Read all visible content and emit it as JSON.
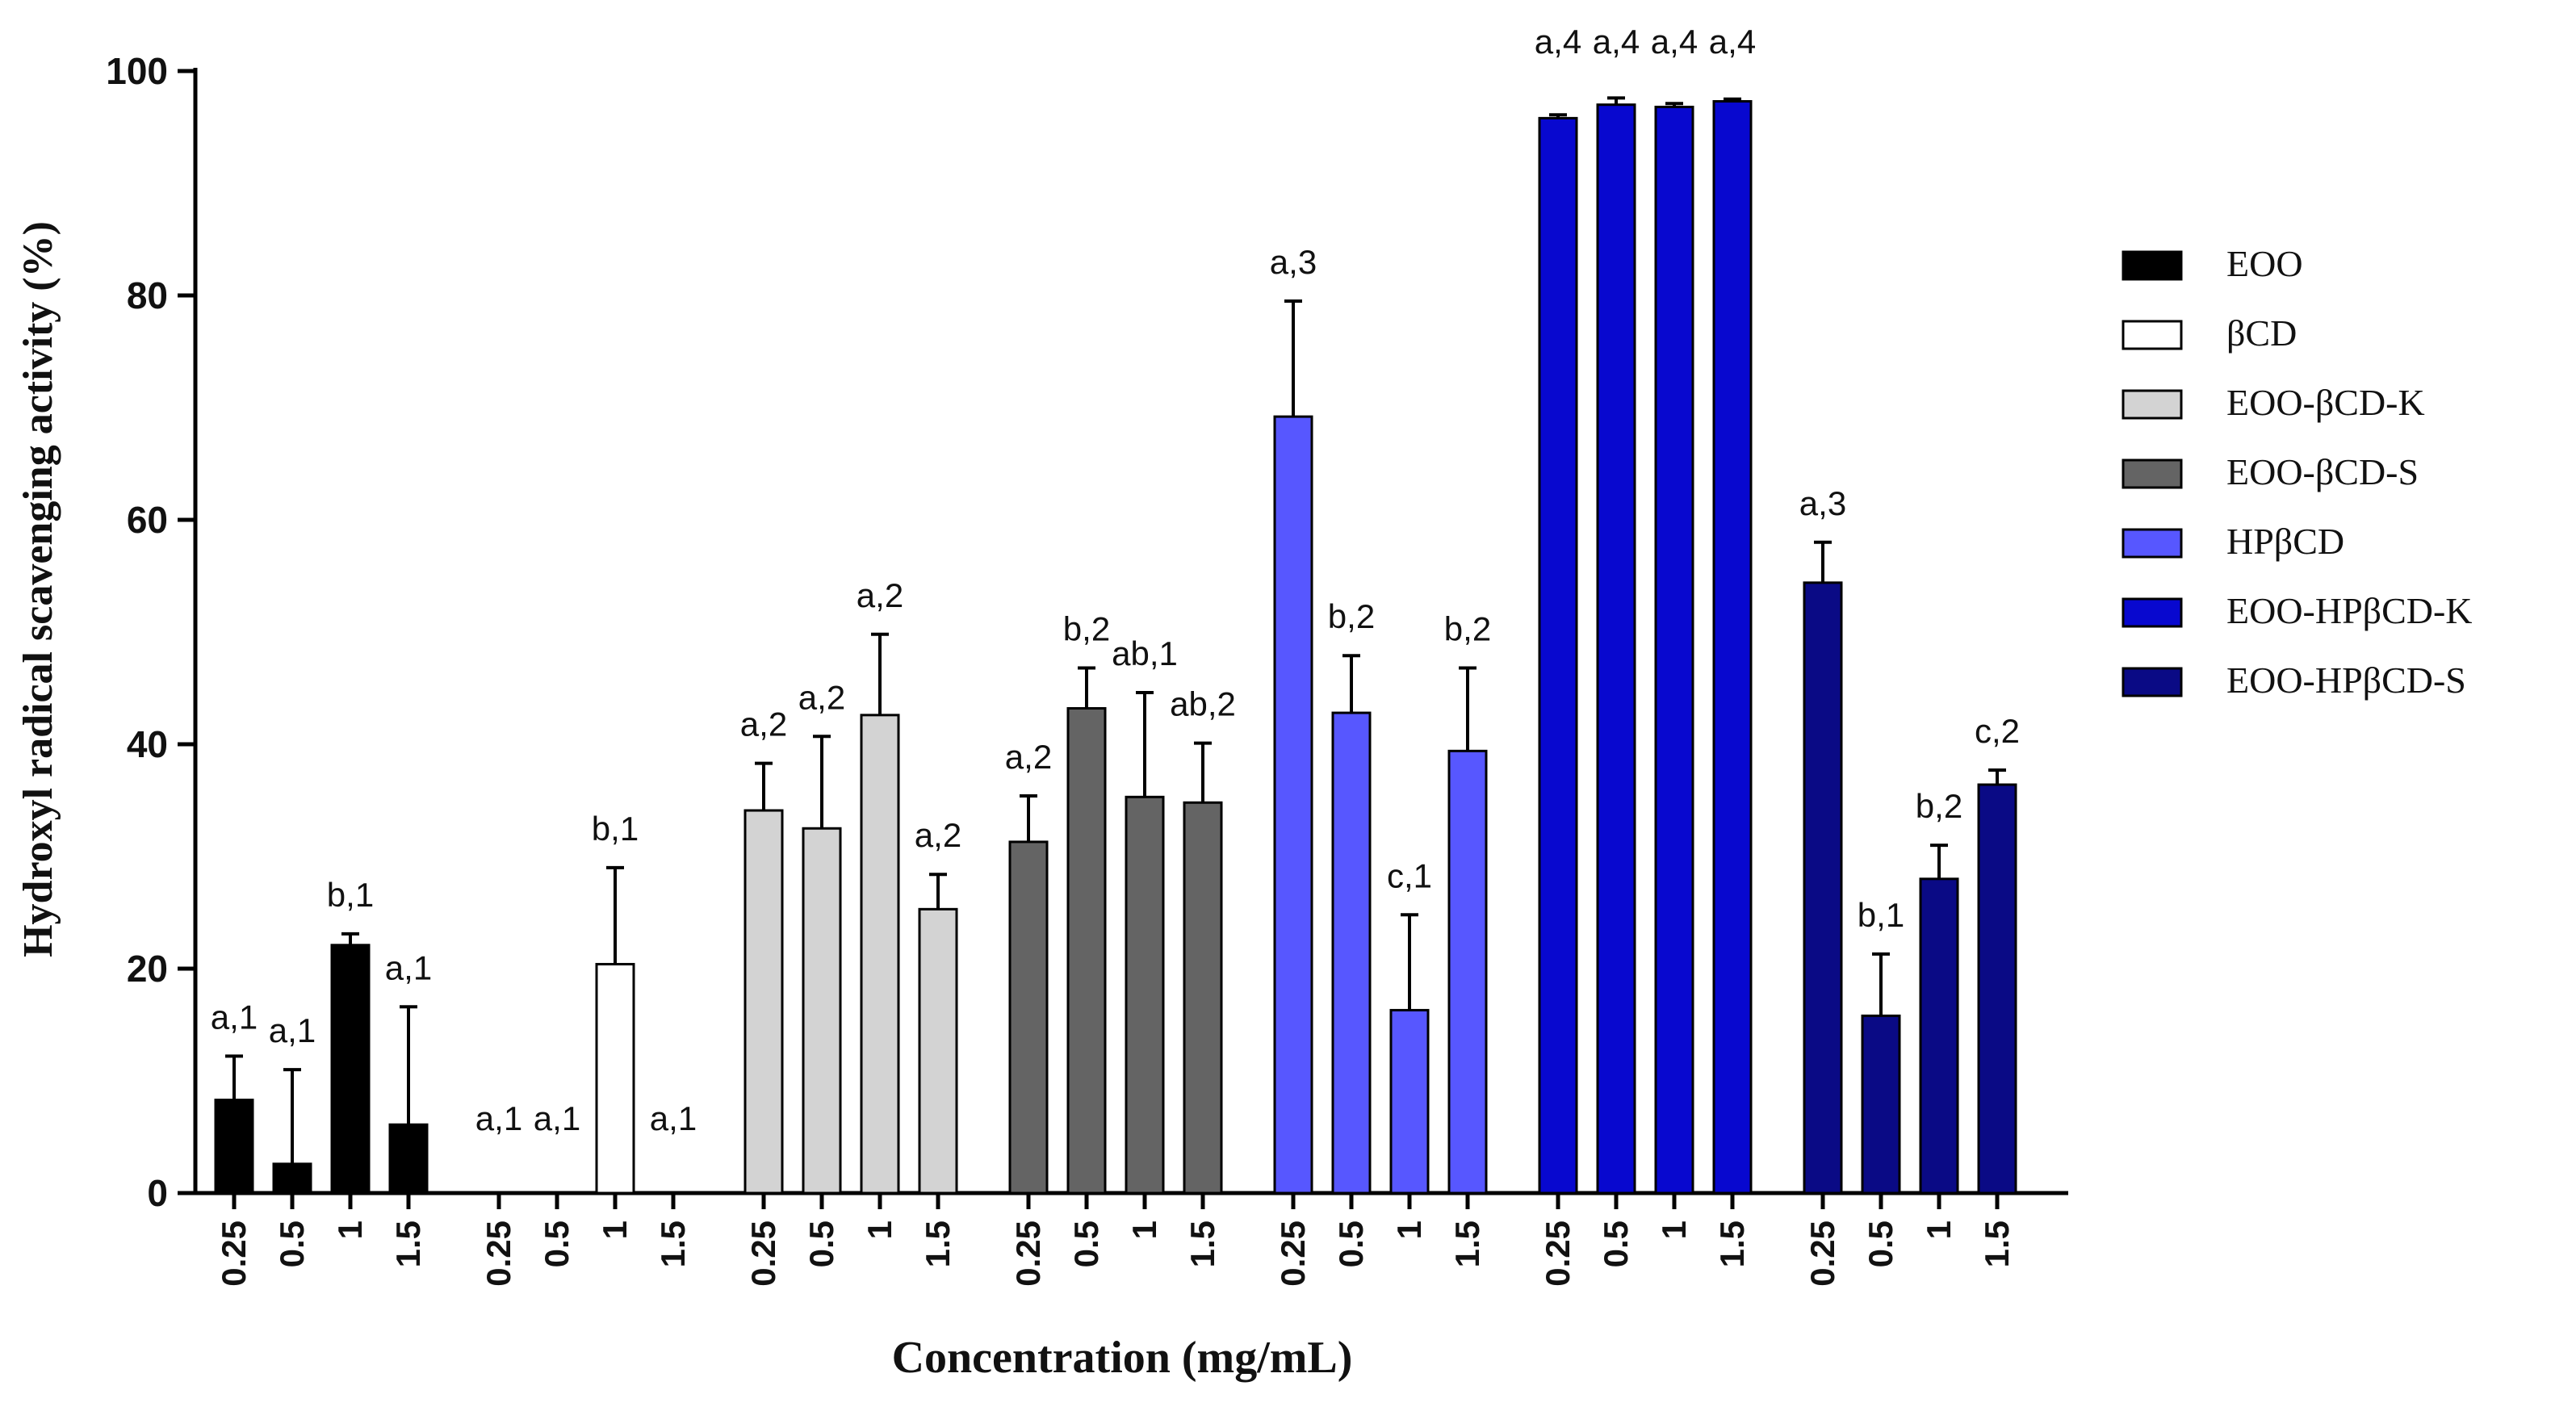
{
  "chart_data": {
    "type": "bar",
    "title": "",
    "xlabel": "Concentration (mg/mL)",
    "ylabel": "Hydroxyl radical scavenging activity (%)",
    "ylim": [
      0,
      100
    ],
    "yticks": [
      "0",
      "20",
      "40",
      "60",
      "80",
      "100"
    ],
    "categories": [
      "0.25",
      "0.5",
      "1",
      "1.5"
    ],
    "legend_position": "right",
    "series": [
      {
        "name": "EOO",
        "color": "#000000",
        "values": [
          8.3,
          2.6,
          22.1,
          6.1
        ],
        "errors": [
          3.9,
          8.4,
          1.0,
          10.5
        ],
        "labels": [
          "a,1",
          "a,1",
          "b,1",
          "a,1"
        ]
      },
      {
        "name": "βCD",
        "color": "#ffffff",
        "values": [
          0,
          0,
          20.4,
          0
        ],
        "errors": [
          0,
          0,
          8.6,
          0
        ],
        "labels": [
          "a,1",
          "a,1",
          "b,1",
          "a,1"
        ]
      },
      {
        "name": "EOO-βCD-K",
        "color": "#d3d3d3",
        "values": [
          34.1,
          32.5,
          42.6,
          25.3
        ],
        "errors": [
          4.2,
          8.2,
          7.2,
          3.1
        ],
        "labels": [
          "a,2",
          "a,2",
          "a,2",
          "a,2"
        ]
      },
      {
        "name": "EOO-βCD-S",
        "color": "#646464",
        "values": [
          31.3,
          43.2,
          35.3,
          34.8
        ],
        "errors": [
          4.1,
          3.6,
          9.3,
          5.3
        ],
        "labels": [
          "a,2",
          "b,2",
          "ab,1",
          "ab,2"
        ]
      },
      {
        "name": "HPβCD",
        "color": "#5757ff",
        "values": [
          69.2,
          42.8,
          16.3,
          39.4
        ],
        "errors": [
          10.3,
          5.1,
          8.5,
          7.4
        ],
        "labels": [
          "a,3",
          "b,2",
          "c,1",
          "b,2"
        ]
      },
      {
        "name": "EOO-HPβCD-K",
        "color": "#0808cf",
        "values": [
          95.8,
          97.0,
          96.8,
          97.3
        ],
        "errors": [
          0.3,
          0.6,
          0.3,
          0.2
        ],
        "labels": [
          "a,4",
          "a,4",
          "a,4",
          "a,4"
        ]
      },
      {
        "name": "EOO-HPβCD-S",
        "color": "#0a0a85",
        "values": [
          54.4,
          15.8,
          28.0,
          36.4
        ],
        "errors": [
          3.6,
          5.5,
          3.0,
          1.3
        ],
        "labels": [
          "a,3",
          "b,1",
          "b,2",
          "c,2"
        ]
      }
    ]
  }
}
